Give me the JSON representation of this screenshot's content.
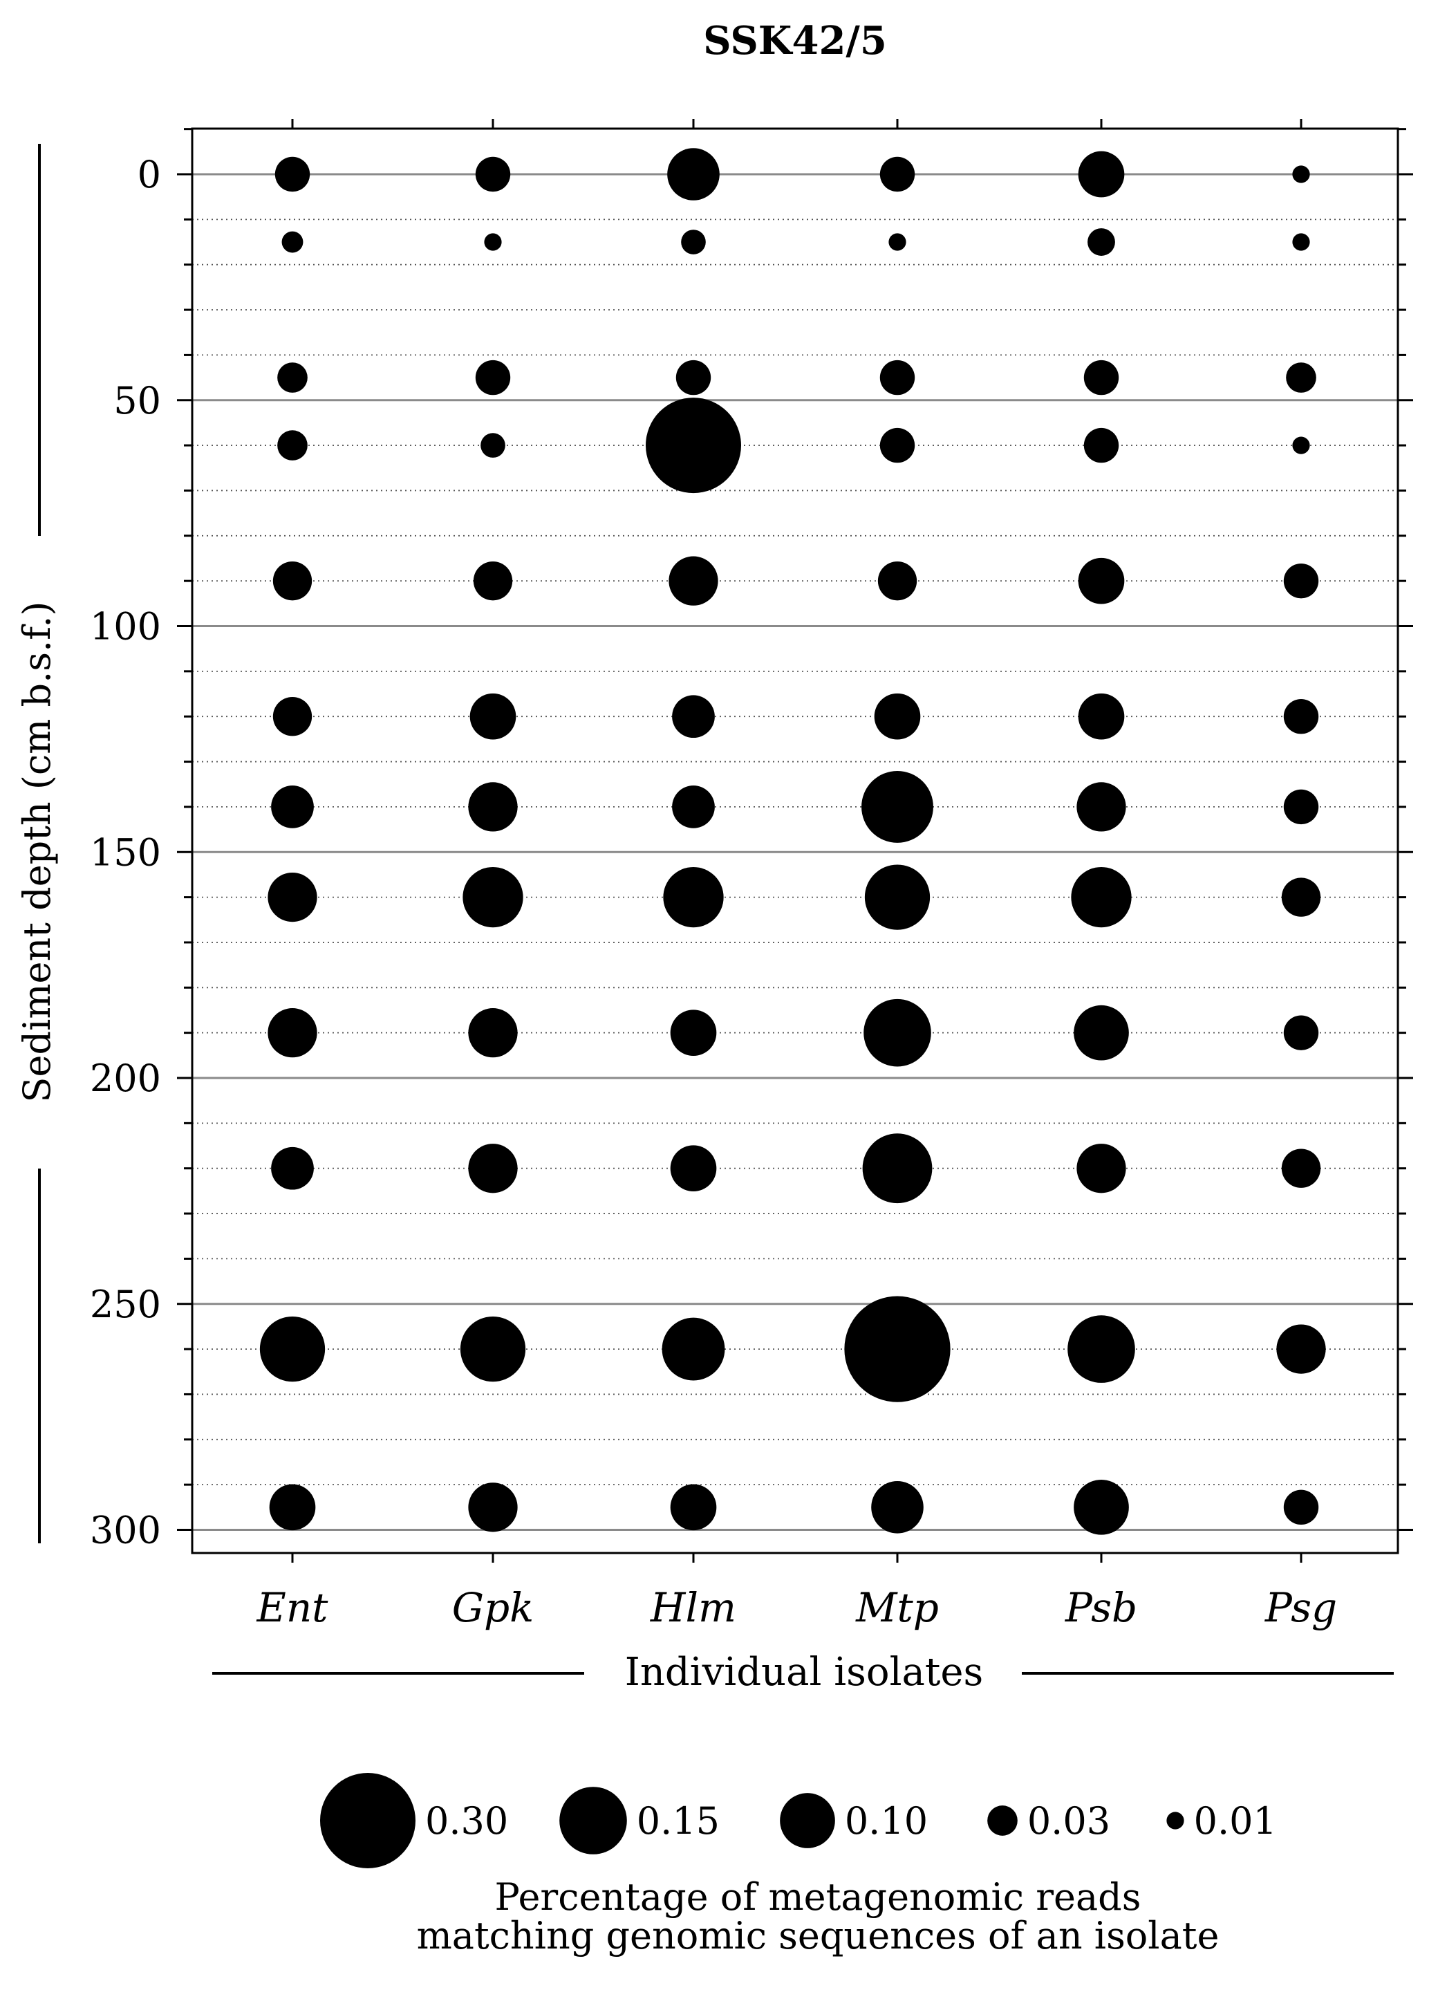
{
  "chart_data": {
    "type": "bubble",
    "title": "SSK42/5",
    "xlabel": "Individual isolates",
    "ylabel": "Sediment depth (cm b.s.f.)",
    "categories": [
      "Ent",
      "Gpk",
      "Hlm",
      "Mtp",
      "Psb",
      "Psg"
    ],
    "y_ticks": [
      0,
      50,
      100,
      150,
      200,
      250,
      300
    ],
    "ylim": [
      -10,
      305
    ],
    "y_inverted": true,
    "depths": [
      0,
      15,
      45,
      60,
      90,
      120,
      140,
      160,
      190,
      220,
      260,
      295
    ],
    "values": {
      "Ent": [
        0.04,
        0.015,
        0.03,
        0.03,
        0.05,
        0.05,
        0.06,
        0.08,
        0.08,
        0.06,
        0.14,
        0.07
      ],
      "Gpk": [
        0.04,
        0.01,
        0.04,
        0.02,
        0.05,
        0.07,
        0.08,
        0.12,
        0.08,
        0.08,
        0.14,
        0.08
      ],
      "Hlm": [
        0.09,
        0.02,
        0.04,
        0.3,
        0.08,
        0.06,
        0.06,
        0.12,
        0.07,
        0.07,
        0.13,
        0.07
      ],
      "Mtp": [
        0.04,
        0.01,
        0.04,
        0.04,
        0.05,
        0.07,
        0.17,
        0.14,
        0.15,
        0.16,
        0.37,
        0.09
      ],
      "Psb": [
        0.07,
        0.025,
        0.04,
        0.04,
        0.07,
        0.07,
        0.08,
        0.12,
        0.1,
        0.08,
        0.15,
        0.1
      ],
      "Psg": [
        0.01,
        0.01,
        0.03,
        0.01,
        0.04,
        0.04,
        0.04,
        0.05,
        0.04,
        0.05,
        0.08,
        0.04
      ]
    },
    "size_legend": {
      "title_line1": "Percentage of metagenomic reads",
      "title_line2": "matching genomic sequences of an isolate",
      "entries": [
        {
          "value": 0.3,
          "label": "0.30"
        },
        {
          "value": 0.15,
          "label": "0.15"
        },
        {
          "value": 0.1,
          "label": "0.10"
        },
        {
          "value": 0.03,
          "label": "0.03"
        },
        {
          "value": 0.01,
          "label": "0.01"
        }
      ]
    },
    "grid": {
      "major_every": 50,
      "minor_every": 10
    },
    "marker_color": "#000000"
  }
}
